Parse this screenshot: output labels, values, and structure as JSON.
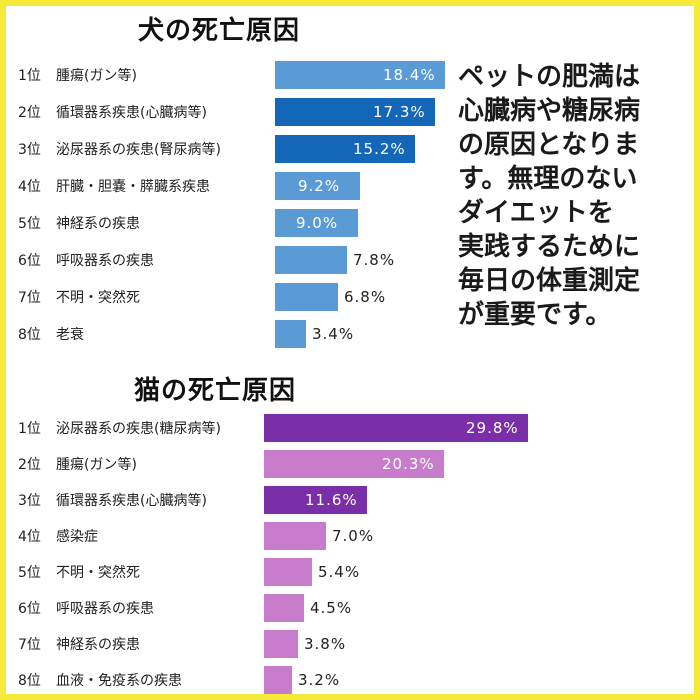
{
  "colors": {
    "frame": "#f5ea3a",
    "dog_bar": "#5b9bd5",
    "dog_bar_highlight": "#1466b8",
    "cat_bar": "#c77dcc",
    "cat_bar_highlight": "#7a2fa8"
  },
  "note_lines": [
    "ペットの肥満は",
    "心臓病や糖尿病",
    "の原因となりま",
    "す。無理のない",
    "ダイエットを",
    "実践するために",
    "毎日の体重測定",
    "が重要です。"
  ],
  "chart_data": [
    {
      "type": "bar",
      "orientation": "horizontal",
      "title": "犬の死亡原因",
      "ranks": [
        "1位",
        "2位",
        "3位",
        "4位",
        "5位",
        "6位",
        "7位",
        "8位"
      ],
      "categories": [
        "腫瘍(ガン等)",
        "循環器系疾患(心臓病等)",
        "泌尿器系の疾患(腎尿病等)",
        "肝臓・胆嚢・膵臓系疾患",
        "神経系の疾患",
        "呼吸器系の疾患",
        "不明・突然死",
        "老衰"
      ],
      "labels": [
        "18.4%",
        "17.3%",
        "15.2%",
        "9.2%",
        "9.0%",
        "7.8%",
        "6.8%",
        "3.4%"
      ],
      "values": [
        18.4,
        17.3,
        15.2,
        9.2,
        9.0,
        7.8,
        6.8,
        3.4
      ],
      "highlight": [
        false,
        true,
        true,
        false,
        false,
        false,
        false,
        false
      ]
    },
    {
      "type": "bar",
      "orientation": "horizontal",
      "title": "猫の死亡原因",
      "ranks": [
        "1位",
        "2位",
        "3位",
        "4位",
        "5位",
        "6位",
        "7位",
        "8位"
      ],
      "categories": [
        "泌尿器系の疾患(糖尿病等)",
        "腫瘍(ガン等)",
        "循環器系疾患(心臓病等)",
        "感染症",
        "不明・突然死",
        "呼吸器系の疾患",
        "神経系の疾患",
        "血液・免疫系の疾患"
      ],
      "labels": [
        "29.8%",
        "20.3%",
        "11.6%",
        "7.0%",
        "5.4%",
        "4.5%",
        "3.8%",
        "3.2%"
      ],
      "values": [
        29.8,
        20.3,
        11.6,
        7.0,
        5.4,
        4.5,
        3.8,
        3.2
      ],
      "highlight": [
        true,
        false,
        true,
        false,
        false,
        false,
        false,
        false
      ]
    }
  ]
}
